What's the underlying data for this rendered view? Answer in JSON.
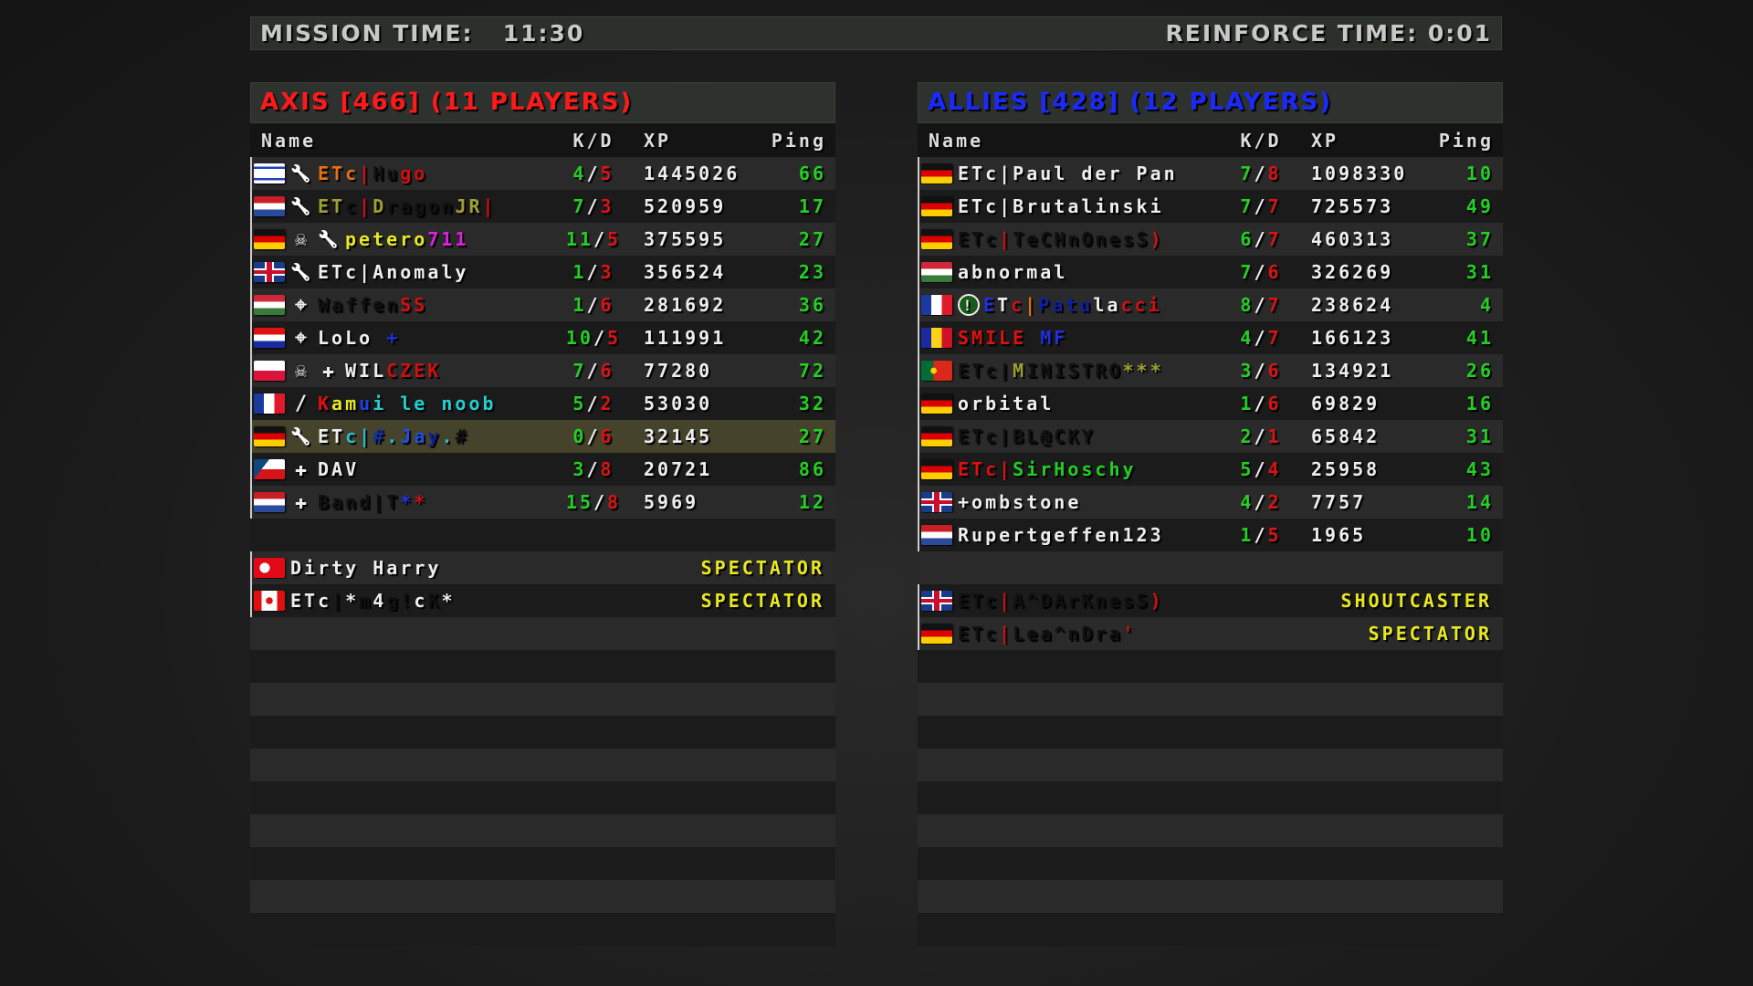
{
  "topbar": {
    "mission_label": "MISSION TIME:",
    "mission_time": "11:30",
    "reinforce_label": "REINFORCE TIME:",
    "reinforce_time": "0:01"
  },
  "colors": {
    "axis": "#ff1a1a",
    "allies": "#1a2aff",
    "kills": "#22d022",
    "deaths": "#d81414",
    "ping": "#22d022",
    "role": "#e8e820"
  },
  "columns": {
    "name": "Name",
    "kd": "K/D",
    "xp": "XP",
    "ping": "Ping"
  },
  "axis": {
    "title": "AXIS [466] (11 PLAYERS)",
    "players": [
      {
        "flag": "il",
        "icons": [
          "wrench"
        ],
        "name": [
          {
            "t": "ETc",
            "c": "#e87010"
          },
          {
            "t": "|",
            "c": "#d01010"
          },
          {
            "t": "Hu",
            "c": "#111"
          },
          {
            "t": "go",
            "c": "#d01010"
          }
        ],
        "k": "4",
        "d": "5",
        "xp": "1445026",
        "ping": "66"
      },
      {
        "flag": "nl",
        "icons": [
          "wrench"
        ],
        "name": [
          {
            "t": "ET",
            "c": "#a0a030"
          },
          {
            "t": "c",
            "c": "#111"
          },
          {
            "t": "|",
            "c": "#d01010"
          },
          {
            "t": "D",
            "c": "#a0a030"
          },
          {
            "t": "ragon",
            "c": "#111"
          },
          {
            "t": "JR",
            "c": "#a0a030"
          },
          {
            "t": "|",
            "c": "#d01010"
          }
        ],
        "k": "7",
        "d": "3",
        "xp": "520959",
        "ping": "17"
      },
      {
        "flag": "de",
        "icons": [
          "skull",
          "wrench"
        ],
        "name": [
          {
            "t": "petero",
            "c": "#e8e820"
          },
          {
            "t": "711",
            "c": "#e020e0"
          }
        ],
        "k": "11",
        "d": "5",
        "xp": "375595",
        "ping": "27"
      },
      {
        "flag": "gb",
        "icons": [
          "wrench"
        ],
        "name": [
          {
            "t": "ETc|Anomaly",
            "c": "#eeeeee"
          }
        ],
        "k": "1",
        "d": "3",
        "xp": "356524",
        "ping": "23"
      },
      {
        "flag": "hu",
        "icons": [
          "crosshair"
        ],
        "name": [
          {
            "t": "Waffen",
            "c": "#111"
          },
          {
            "t": "SS",
            "c": "#d01010"
          }
        ],
        "k": "1",
        "d": "6",
        "xp": "281692",
        "ping": "36"
      },
      {
        "flag": "hr",
        "icons": [
          "crosshair"
        ],
        "name": [
          {
            "t": "LoLo ",
            "c": "#eeeeee"
          },
          {
            "t": "+",
            "c": "#2030e0"
          }
        ],
        "k": "10",
        "d": "5",
        "xp": "111991",
        "ping": "42"
      },
      {
        "flag": "pl",
        "icons": [
          "skull",
          "medic-cross"
        ],
        "name": [
          {
            "t": "WIL",
            "c": "#eeeeee"
          },
          {
            "t": "CZEK",
            "c": "#d01010"
          }
        ],
        "k": "7",
        "d": "6",
        "xp": "77280",
        "ping": "72"
      },
      {
        "flag": "fr",
        "icons": [
          "knife"
        ],
        "name": [
          {
            "t": "K",
            "c": "#e01010"
          },
          {
            "t": "am",
            "c": "#e8e820"
          },
          {
            "t": "u",
            "c": "#2040e0"
          },
          {
            "t": "i le noob",
            "c": "#20d0d0"
          }
        ],
        "k": "5",
        "d": "2",
        "xp": "53030",
        "ping": "32"
      },
      {
        "flag": "de",
        "icons": [
          "wrench"
        ],
        "highlight": true,
        "name": [
          {
            "t": "ET",
            "c": "#eeeeee"
          },
          {
            "t": "c|",
            "c": "#20c0d0"
          },
          {
            "t": "#",
            "c": "#1030a0"
          },
          {
            "t": ".",
            "c": "#20c0d0"
          },
          {
            "t": "Ja",
            "c": "#2050e0"
          },
          {
            "t": "y",
            "c": "#1020a0"
          },
          {
            "t": ".",
            "c": "#20c0d0"
          },
          {
            "t": "#",
            "c": "#111"
          }
        ],
        "k": "0",
        "d": "6",
        "xp": "32145",
        "ping": "27"
      },
      {
        "flag": "cz",
        "icons": [
          "medic-cross"
        ],
        "name": [
          {
            "t": "DAV",
            "c": "#eeeeee"
          }
        ],
        "k": "3",
        "d": "8",
        "xp": "20721",
        "ping": "86"
      },
      {
        "flag": "nl",
        "icons": [
          "medic-cross"
        ],
        "name": [
          {
            "t": "Band|T",
            "c": "#111"
          },
          {
            "t": "*",
            "c": "#2030e0"
          },
          {
            "t": "*",
            "c": "#d01010"
          }
        ],
        "k": "15",
        "d": "8",
        "xp": "5969",
        "ping": "12"
      }
    ],
    "spectators": [
      {
        "flag": "tr",
        "name": [
          {
            "t": "Dirty Harry",
            "c": "#eeeeee"
          }
        ],
        "role": "SPECTATOR"
      },
      {
        "flag": "ca",
        "name": [
          {
            "t": "ETc",
            "c": "#eeeeee"
          },
          {
            "t": "|",
            "c": "#111"
          },
          {
            "t": "*",
            "c": "#eeeeee"
          },
          {
            "t": "m",
            "c": "#111"
          },
          {
            "t": "4",
            "c": "#eeeeee"
          },
          {
            "t": "g!",
            "c": "#111"
          },
          {
            "t": "c",
            "c": "#eeeeee"
          },
          {
            "t": "K",
            "c": "#111"
          },
          {
            "t": "*",
            "c": "#eeeeee"
          }
        ],
        "role": "SPECTATOR"
      }
    ]
  },
  "allies": {
    "title": "ALLIES [428] (12 PLAYERS)",
    "players": [
      {
        "flag": "de",
        "icons": [],
        "name": [
          {
            "t": "ETc|Paul der Pan",
            "c": "#eeeeee"
          }
        ],
        "k": "7",
        "d": "8",
        "xp": "1098330",
        "ping": "10"
      },
      {
        "flag": "de",
        "icons": [],
        "name": [
          {
            "t": "ETc|Brutalinski",
            "c": "#eeeeee"
          }
        ],
        "k": "7",
        "d": "7",
        "xp": "725573",
        "ping": "49"
      },
      {
        "flag": "de",
        "icons": [],
        "name": [
          {
            "t": "ETc",
            "c": "#111"
          },
          {
            "t": "|",
            "c": "#d01010"
          },
          {
            "t": "TeCHnOnesS",
            "c": "#111"
          },
          {
            "t": ")",
            "c": "#d01010"
          }
        ],
        "k": "6",
        "d": "7",
        "xp": "460313",
        "ping": "37"
      },
      {
        "flag": "hu",
        "icons": [],
        "name": [
          {
            "t": "abnormal",
            "c": "#eeeeee"
          }
        ],
        "k": "7",
        "d": "6",
        "xp": "326269",
        "ping": "31"
      },
      {
        "flag": "fr",
        "icons": [
          "alert"
        ],
        "name": [
          {
            "t": "E",
            "c": "#2030e0"
          },
          {
            "t": "T",
            "c": "#eeeeee"
          },
          {
            "t": "c",
            "c": "#d01010"
          },
          {
            "t": "|",
            "c": "#e87010"
          },
          {
            "t": "Patu",
            "c": "#1020a0"
          },
          {
            "t": "la",
            "c": "#eeeeee"
          },
          {
            "t": "cci",
            "c": "#d01010"
          }
        ],
        "k": "8",
        "d": "7",
        "xp": "238624",
        "ping": "4"
      },
      {
        "flag": "ro",
        "icons": [],
        "name": [
          {
            "t": "SMILE ",
            "c": "#e01010"
          },
          {
            "t": "MF",
            "c": "#2030e0"
          }
        ],
        "k": "4",
        "d": "7",
        "xp": "166123",
        "ping": "41"
      },
      {
        "flag": "pt",
        "icons": [],
        "name": [
          {
            "t": "ETc|",
            "c": "#111"
          },
          {
            "t": "M",
            "c": "#a0a030"
          },
          {
            "t": "INISTRO",
            "c": "#111"
          },
          {
            "t": "***",
            "c": "#a0a030"
          }
        ],
        "k": "3",
        "d": "6",
        "xp": "134921",
        "ping": "26"
      },
      {
        "flag": "de",
        "icons": [],
        "name": [
          {
            "t": "orbital",
            "c": "#eeeeee"
          }
        ],
        "k": "1",
        "d": "6",
        "xp": "69829",
        "ping": "16"
      },
      {
        "flag": "de",
        "icons": [],
        "name": [
          {
            "t": "ETc|BL@CKY",
            "c": "#111"
          }
        ],
        "k": "2",
        "d": "1",
        "xp": "65842",
        "ping": "31"
      },
      {
        "flag": "de",
        "icons": [],
        "name": [
          {
            "t": "ETc|",
            "c": "#e01010"
          },
          {
            "t": "SirHoschy",
            "c": "#20d020"
          }
        ],
        "k": "5",
        "d": "4",
        "xp": "25958",
        "ping": "43"
      },
      {
        "flag": "gb",
        "icons": [],
        "name": [
          {
            "t": "+ombstone",
            "c": "#eeeeee"
          }
        ],
        "k": "4",
        "d": "2",
        "xp": "7757",
        "ping": "14"
      },
      {
        "flag": "nl",
        "icons": [],
        "name": [
          {
            "t": "Rupertgeffen123",
            "c": "#eeeeee"
          }
        ],
        "k": "1",
        "d": "5",
        "xp": "1965",
        "ping": "10"
      }
    ],
    "spectators": [
      {
        "flag": "gb",
        "name": [
          {
            "t": "ETc",
            "c": "#111"
          },
          {
            "t": "|",
            "c": "#d01010"
          },
          {
            "t": "A^DArKnesS",
            "c": "#111"
          },
          {
            "t": ")",
            "c": "#d01010"
          }
        ],
        "role": "SHOUTCASTER"
      },
      {
        "flag": "de",
        "name": [
          {
            "t": "ETc",
            "c": "#111"
          },
          {
            "t": "|",
            "c": "#d01010"
          },
          {
            "t": "Lea^nDra",
            "c": "#111"
          },
          {
            "t": "'",
            "c": "#d01010"
          }
        ],
        "role": "SPECTATOR"
      }
    ]
  }
}
